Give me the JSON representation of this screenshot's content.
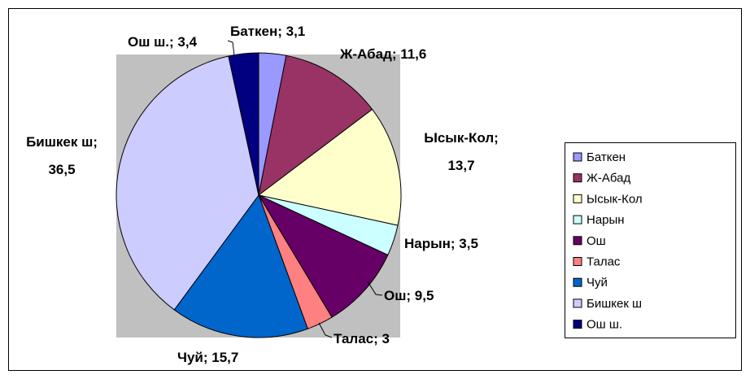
{
  "chart_data": {
    "type": "pie",
    "categories": [
      "Баткен",
      "Ж-Абад",
      "Ысык-Кол",
      "Нарын",
      "Ош",
      "Талас",
      "Чуй",
      "Бишкек ш",
      "Ош ш."
    ],
    "values": [
      3.1,
      11.6,
      13.7,
      3.5,
      9.5,
      3,
      15.7,
      36.5,
      3.4
    ],
    "value_labels": [
      "Баткен; 3,1",
      "Ж-Абад; 11,6",
      "Ысык-Кол; 13,7",
      "Нарын; 3,5",
      "Ош; 9,5",
      "Талас; 3",
      "Чуй; 15,7",
      "Бишкек ш; 36,5",
      "Ош ш.; 3,4"
    ],
    "colors": [
      "#9999ff",
      "#993366",
      "#ffffcc",
      "#ccffff",
      "#660066",
      "#ff8080",
      "#0066cc",
      "#ccccff",
      "#000080"
    ],
    "legend": "right"
  }
}
